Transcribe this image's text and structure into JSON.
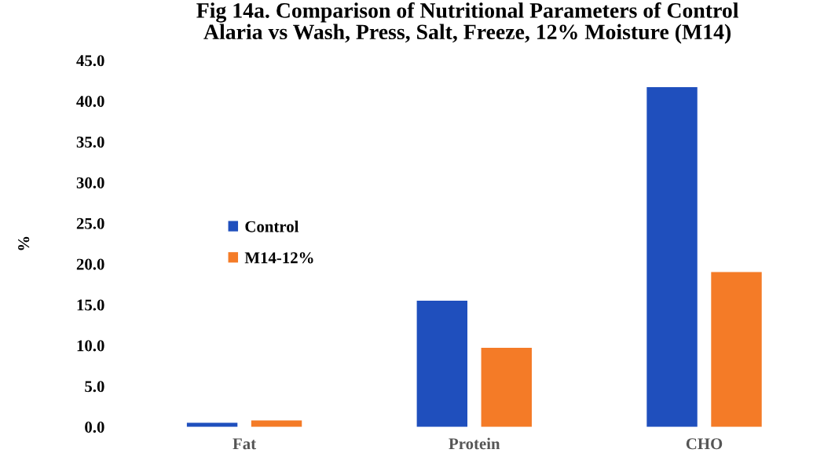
{
  "chart_data": {
    "type": "bar",
    "title": "Fig 14a. Comparison of Nutritional Parameters of Control\nAlaria vs Wash, Press, Salt, Freeze, 12% Moisture (M14)",
    "ylabel": "%",
    "categories": [
      "Fat",
      "Protein",
      "CHO"
    ],
    "series": [
      {
        "name": "Control",
        "color": "#1f4fbd",
        "values": [
          0.5,
          15.5,
          41.7
        ]
      },
      {
        "name": "M14-12%",
        "color": "#f47b27",
        "values": [
          0.8,
          9.7,
          19.0
        ]
      }
    ],
    "ylim": [
      0,
      45
    ],
    "yticks": [
      {
        "value": 0,
        "label": "0.0"
      },
      {
        "value": 5,
        "label": "5.0"
      },
      {
        "value": 10,
        "label": "10.0"
      },
      {
        "value": 15,
        "label": "15.0"
      },
      {
        "value": 20,
        "label": "20.0"
      },
      {
        "value": 25,
        "label": "25.0"
      },
      {
        "value": 30,
        "label": "30.0"
      },
      {
        "value": 35,
        "label": "35.0"
      },
      {
        "value": 40,
        "label": "40.0"
      },
      {
        "value": 45,
        "label": "45.0"
      }
    ],
    "grid": false,
    "legend": "left"
  }
}
